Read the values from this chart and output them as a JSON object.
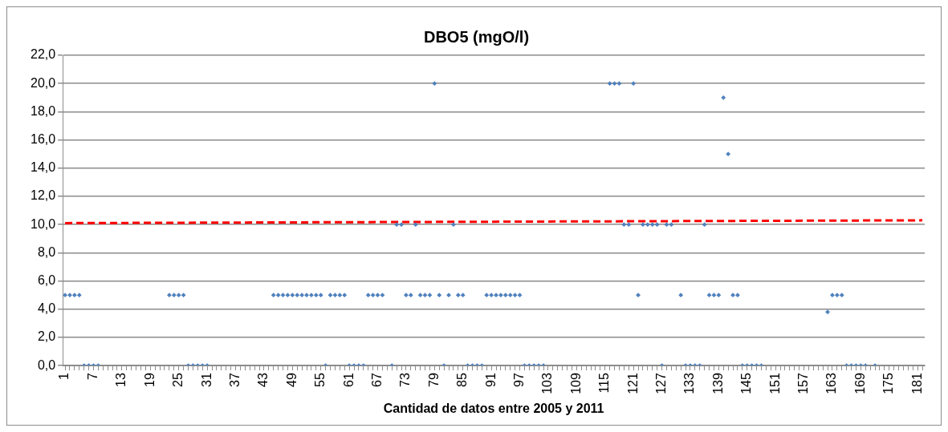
{
  "chart_data": {
    "type": "scatter",
    "title": "DBO5 (mgO/l)",
    "xlabel": "Cantidad de datos entre 2005 y 2011",
    "categories": [
      "1",
      null,
      null,
      null,
      null,
      null,
      "7",
      null,
      null,
      null,
      null,
      null,
      "13",
      null,
      null,
      null,
      null,
      null,
      "19",
      null,
      null,
      null,
      null,
      null,
      "25",
      null,
      null,
      null,
      null,
      null,
      "31",
      null,
      null,
      null,
      null,
      null,
      "37",
      null,
      null,
      null,
      null,
      null,
      "43",
      null,
      null,
      null,
      null,
      null,
      "49",
      null,
      null,
      null,
      null,
      null,
      "55",
      null,
      null,
      null,
      null,
      null,
      "61",
      null,
      null,
      null,
      null,
      null,
      "67",
      null,
      null,
      null,
      null,
      null,
      "73",
      null,
      null,
      null,
      null,
      null,
      "79",
      null,
      null,
      null,
      null,
      null,
      "85",
      null,
      null,
      null,
      null,
      null,
      "91",
      null,
      null,
      null,
      null,
      null,
      "97",
      null,
      null,
      null,
      null,
      null,
      "103",
      null,
      null,
      null,
      null,
      null,
      "109",
      null,
      null,
      null,
      null,
      null,
      "115",
      null,
      null,
      null,
      null,
      null,
      "121",
      null,
      null,
      null,
      null,
      null,
      "127",
      null,
      null,
      null,
      null,
      null,
      "133",
      null,
      null,
      null,
      null,
      null,
      "139",
      null,
      null,
      null,
      null,
      null,
      "145",
      null,
      null,
      null,
      null,
      null,
      "151",
      null,
      null,
      null,
      null,
      null,
      "157",
      null,
      null,
      null,
      null,
      null,
      "163",
      null,
      null,
      null,
      null,
      null,
      "169",
      null,
      null,
      null,
      null,
      null,
      "175",
      null,
      null,
      null,
      null,
      null,
      "181",
      null
    ],
    "series": [
      {
        "color": "#4f81bd",
        "marker": "diamond",
        "values": [
          5,
          5,
          5,
          5,
          0,
          0,
          0,
          0,
          null,
          null,
          null,
          null,
          null,
          null,
          null,
          null,
          null,
          null,
          null,
          null,
          null,
          null,
          5,
          5,
          5,
          5,
          0,
          0,
          0,
          0,
          0,
          null,
          null,
          null,
          null,
          null,
          null,
          null,
          null,
          null,
          null,
          null,
          null,
          null,
          5,
          5,
          5,
          5,
          5,
          5,
          5,
          5,
          5,
          5,
          5,
          0,
          5,
          5,
          5,
          5,
          0,
          0,
          0,
          0,
          5,
          5,
          5,
          5,
          null,
          0,
          10,
          10,
          5,
          5,
          10,
          5,
          5,
          5,
          20,
          5,
          0,
          5,
          10,
          5,
          5,
          0,
          0,
          0,
          0,
          5,
          5,
          5,
          5,
          5,
          5,
          5,
          5,
          0,
          0,
          0,
          0,
          0,
          null,
          null,
          null,
          null,
          null,
          null,
          null,
          null,
          null,
          null,
          null,
          null,
          null,
          20,
          20,
          20,
          10,
          10,
          20,
          5,
          10,
          10,
          10,
          10,
          0,
          10,
          10,
          null,
          5,
          0,
          0,
          0,
          0,
          10,
          5,
          5,
          5,
          19,
          15,
          5,
          5,
          0,
          0,
          0,
          0,
          0,
          null,
          null,
          null,
          null,
          null,
          null,
          null,
          null,
          null,
          null,
          null,
          null,
          null,
          3.8,
          5,
          5,
          5,
          0,
          0,
          0,
          0,
          0,
          null,
          0,
          null,
          null,
          null,
          null,
          null,
          null,
          null,
          null,
          null,
          null
        ]
      },
      {
        "type": "line",
        "color": "#ff0000",
        "marker": "none",
        "line_style": "dashed",
        "values": [
          10.1,
          null,
          null,
          null,
          null,
          null,
          null,
          null,
          null,
          null,
          null,
          null,
          null,
          null,
          null,
          null,
          null,
          null,
          null,
          null,
          null,
          null,
          null,
          null,
          null,
          null,
          null,
          null,
          null,
          null,
          null,
          null,
          null,
          null,
          null,
          null,
          null,
          null,
          null,
          null,
          null,
          null,
          null,
          null,
          null,
          null,
          null,
          null,
          null,
          null,
          null,
          null,
          null,
          null,
          null,
          null,
          null,
          null,
          null,
          null,
          null,
          null,
          null,
          null,
          null,
          null,
          null,
          null,
          null,
          null,
          null,
          null,
          null,
          null,
          null,
          null,
          null,
          null,
          null,
          null,
          null,
          null,
          null,
          null,
          null,
          null,
          null,
          null,
          null,
          null,
          null,
          null,
          null,
          null,
          null,
          null,
          null,
          null,
          null,
          null,
          null,
          null,
          null,
          null,
          null,
          null,
          null,
          null,
          null,
          null,
          null,
          null,
          null,
          null,
          null,
          null,
          null,
          null,
          null,
          null,
          null,
          null,
          null,
          null,
          null,
          null,
          null,
          null,
          null,
          null,
          null,
          null,
          null,
          null,
          null,
          null,
          null,
          null,
          null,
          null,
          null,
          null,
          null,
          null,
          null,
          null,
          null,
          null,
          null,
          null,
          null,
          null,
          null,
          null,
          null,
          null,
          null,
          null,
          null,
          null,
          null,
          null,
          null,
          null,
          null,
          null,
          null,
          null,
          null,
          null,
          null,
          null,
          null,
          null,
          null,
          null,
          null,
          null,
          null,
          null,
          null,
          10.3
        ]
      }
    ],
    "ylim": [
      0,
      22
    ],
    "yticks": [
      {
        "value": 0,
        "label": "0,0"
      },
      {
        "value": 2,
        "label": "2,0"
      },
      {
        "value": 4,
        "label": "4,0"
      },
      {
        "value": 6,
        "label": "6,0"
      },
      {
        "value": 8,
        "label": "8,0"
      },
      {
        "value": 10,
        "label": "10,0"
      },
      {
        "value": 12,
        "label": "12,0"
      },
      {
        "value": 14,
        "label": "14,0"
      },
      {
        "value": 16,
        "label": "16,0"
      },
      {
        "value": 18,
        "label": "18,0"
      },
      {
        "value": 20,
        "label": "20,0"
      },
      {
        "value": 22,
        "label": "22,0"
      }
    ],
    "grid": "y",
    "legend": false
  }
}
